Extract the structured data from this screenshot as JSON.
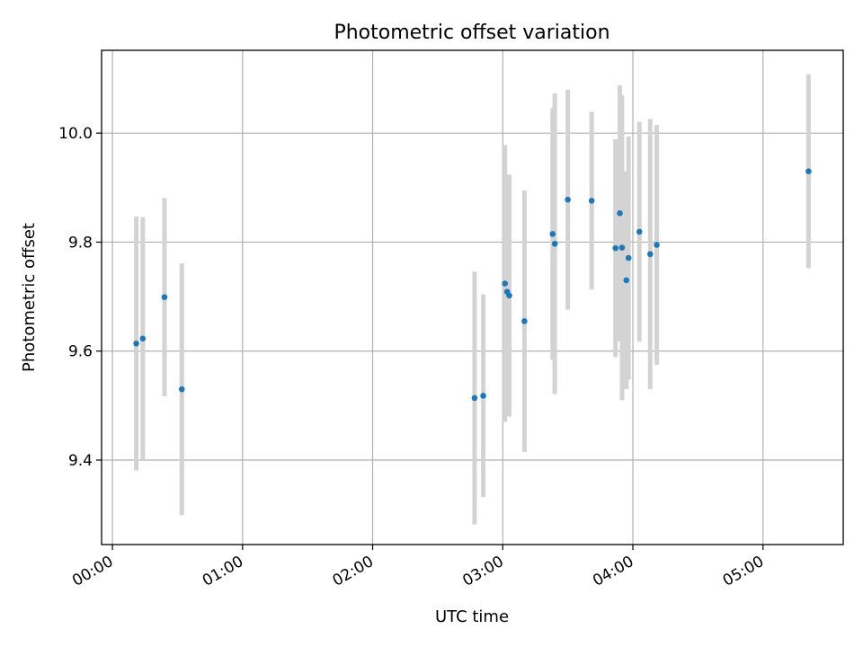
{
  "chart_data": {
    "type": "scatter",
    "title": "Photometric offset variation",
    "xlabel": "UTC time",
    "ylabel": "Photometric offset",
    "xlim": [
      "23:55",
      "05:37"
    ],
    "ylim": [
      9.245,
      10.152
    ],
    "x_ticks": [
      "00:00",
      "01:00",
      "02:00",
      "03:00",
      "04:00",
      "05:00"
    ],
    "y_ticks": [
      "9.4",
      "9.6",
      "9.8",
      "10.0"
    ],
    "grid": true,
    "colors": {
      "marker": "#1f77b4",
      "error_bar": "#d3d3d3"
    },
    "points": [
      {
        "x": "00:11",
        "y": 9.614,
        "yerr": 0.233
      },
      {
        "x": "00:14",
        "y": 9.623,
        "yerr": 0.223
      },
      {
        "x": "00:24",
        "y": 9.699,
        "yerr": 0.182
      },
      {
        "x": "00:32",
        "y": 9.53,
        "yerr": 0.231
      },
      {
        "x": "02:47",
        "y": 9.514,
        "yerr": 0.232
      },
      {
        "x": "02:51",
        "y": 9.518,
        "yerr": 0.186
      },
      {
        "x": "03:01",
        "y": 9.724,
        "yerr": 0.254
      },
      {
        "x": "03:02",
        "y": 9.709,
        "yerr": 0.212
      },
      {
        "x": "03:03",
        "y": 9.702,
        "yerr": 0.222
      },
      {
        "x": "03:10",
        "y": 9.655,
        "yerr": 0.24
      },
      {
        "x": "03:23",
        "y": 9.815,
        "yerr": 0.231
      },
      {
        "x": "03:24",
        "y": 9.797,
        "yerr": 0.276
      },
      {
        "x": "03:30",
        "y": 9.878,
        "yerr": 0.202
      },
      {
        "x": "03:41",
        "y": 9.876,
        "yerr": 0.163
      },
      {
        "x": "03:52",
        "y": 9.789,
        "yerr": 0.2
      },
      {
        "x": "03:54",
        "y": 9.853,
        "yerr": 0.235
      },
      {
        "x": "03:55",
        "y": 9.79,
        "yerr": 0.28
      },
      {
        "x": "03:57",
        "y": 9.73,
        "yerr": 0.2
      },
      {
        "x": "03:58",
        "y": 9.771,
        "yerr": 0.223
      },
      {
        "x": "04:03",
        "y": 9.819,
        "yerr": 0.202
      },
      {
        "x": "04:08",
        "y": 9.778,
        "yerr": 0.248
      },
      {
        "x": "04:11",
        "y": 9.795,
        "yerr": 0.22
      },
      {
        "x": "05:21",
        "y": 9.93,
        "yerr": 0.178
      }
    ]
  }
}
